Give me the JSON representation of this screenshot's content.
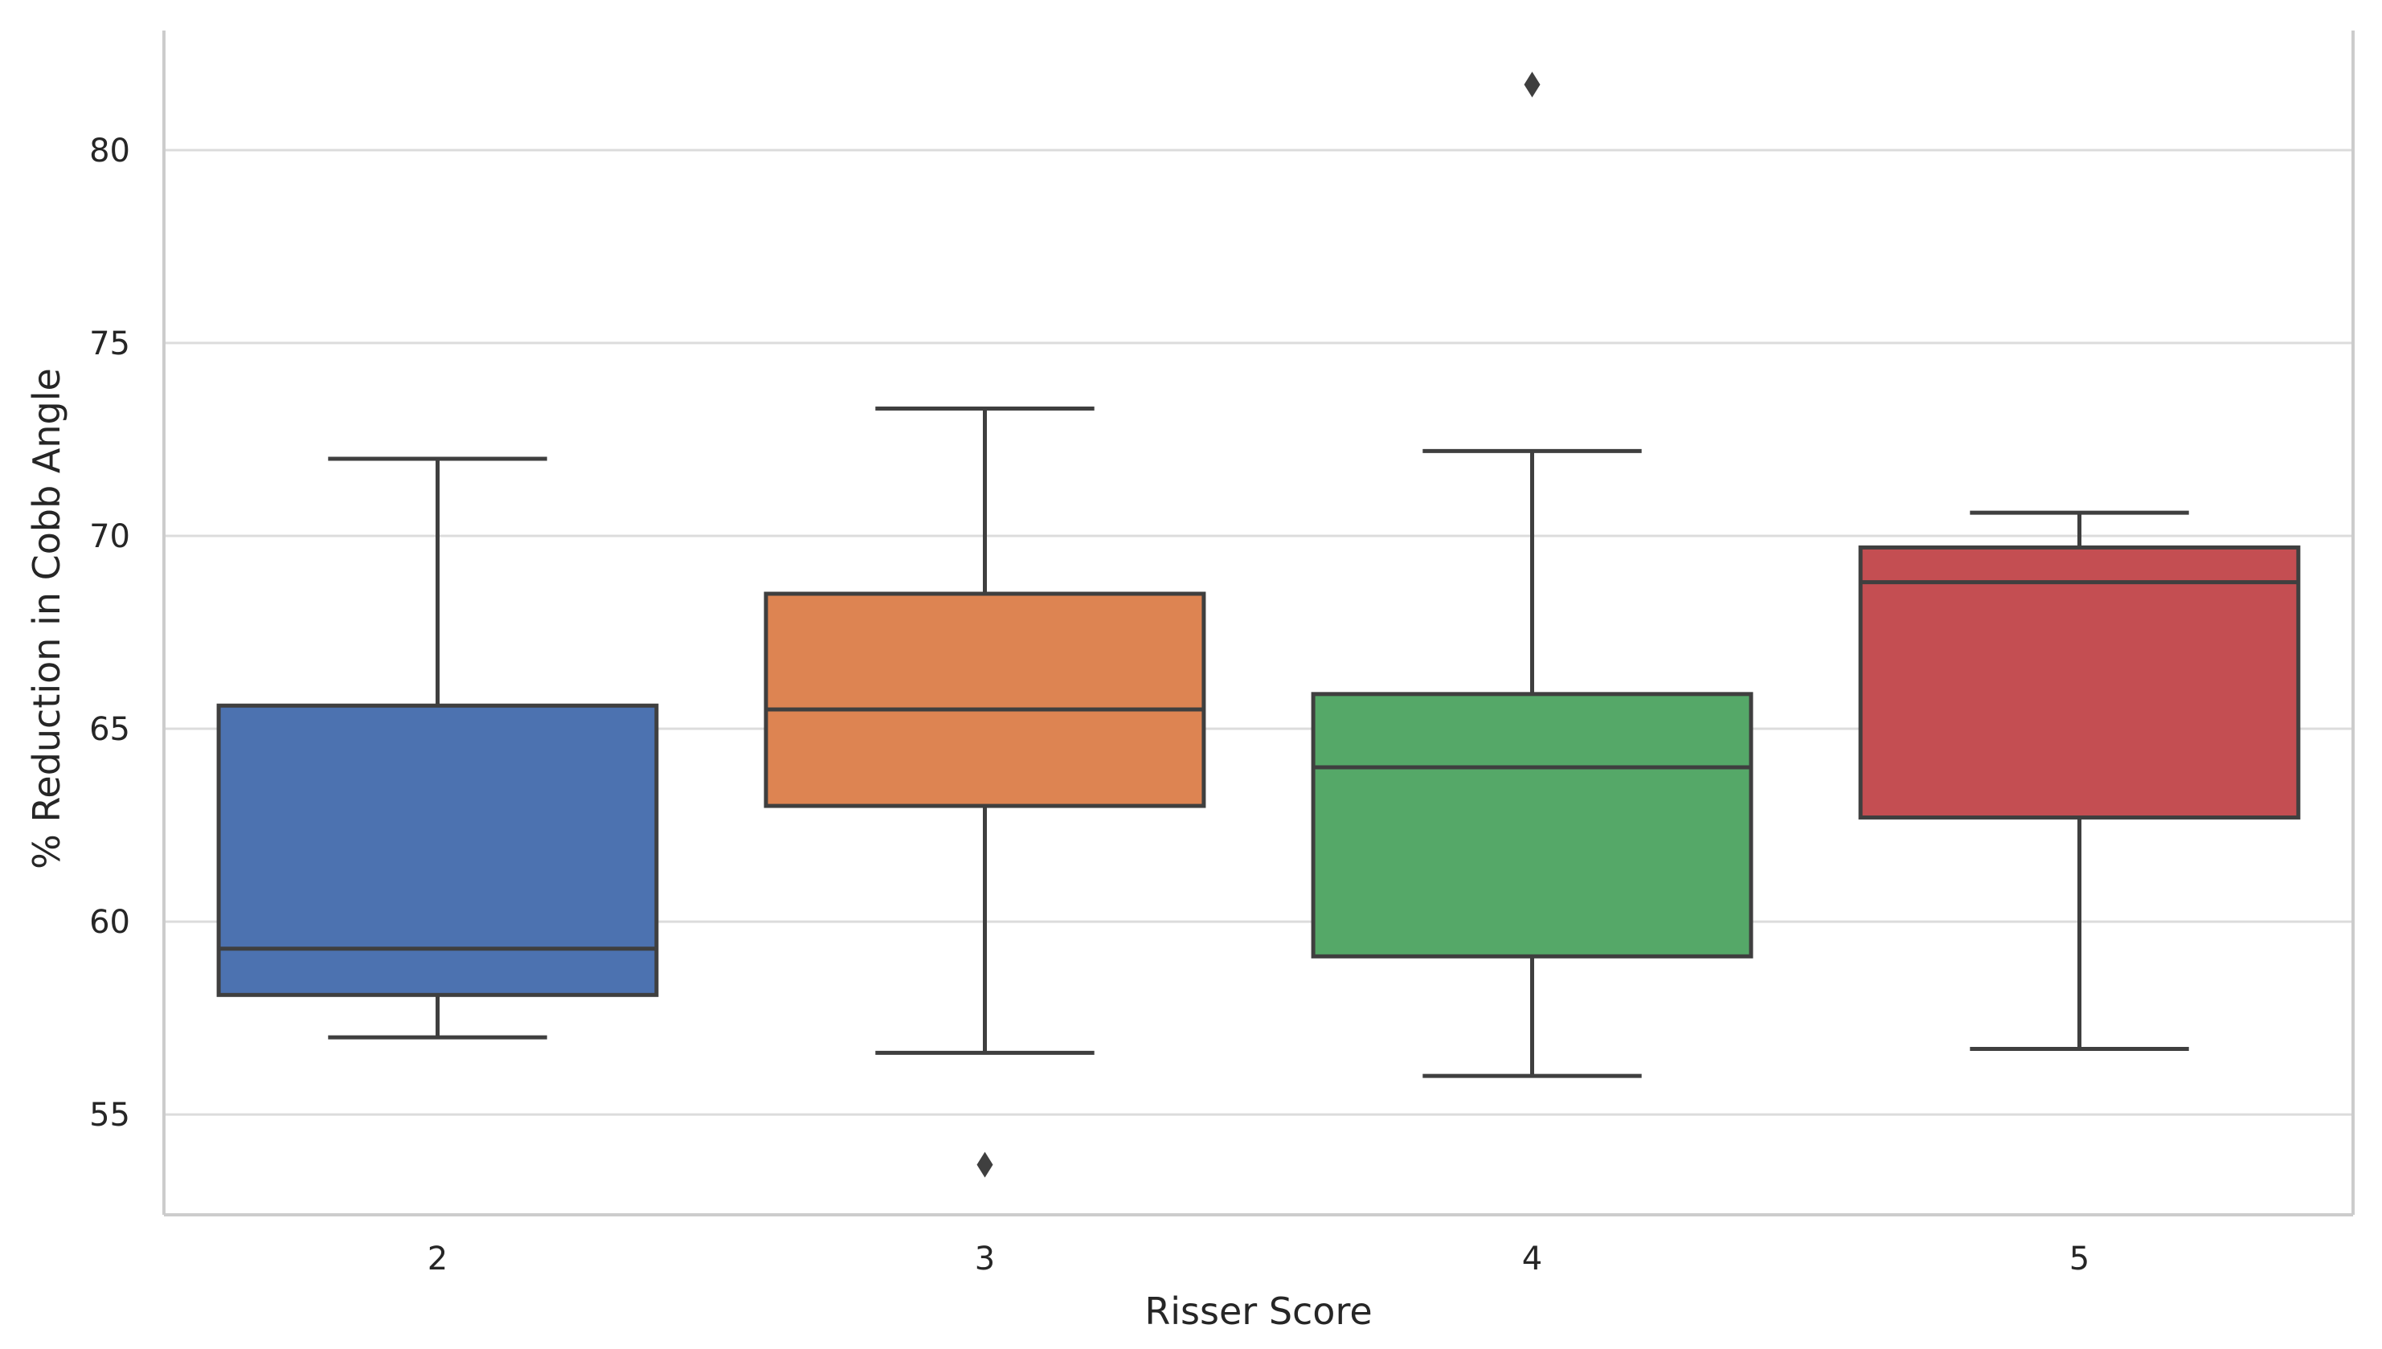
{
  "chart_data": {
    "type": "box",
    "xlabel": "Risser Score",
    "ylabel": "% Reduction in Cobb Angle",
    "categories": [
      "2",
      "3",
      "4",
      "5"
    ],
    "ylim": [
      52.4,
      83.1
    ],
    "yticks": [
      55,
      60,
      65,
      70,
      75,
      80
    ],
    "grid": true,
    "legend": "none",
    "boxes": [
      {
        "category": "2",
        "whisker_low": 57.0,
        "q1": 58.1,
        "median": 59.3,
        "q3": 65.6,
        "whisker_high": 72.0,
        "outliers": [],
        "color": "#4c72b0"
      },
      {
        "category": "3",
        "whisker_low": 56.6,
        "q1": 63.0,
        "median": 65.5,
        "q3": 68.5,
        "whisker_high": 73.3,
        "outliers": [
          53.7
        ],
        "color": "#dd8452"
      },
      {
        "category": "4",
        "whisker_low": 56.0,
        "q1": 59.1,
        "median": 64.0,
        "q3": 65.9,
        "whisker_high": 72.2,
        "outliers": [
          81.7
        ],
        "color": "#55a868"
      },
      {
        "category": "5",
        "whisker_low": 56.7,
        "q1": 62.7,
        "median": 68.8,
        "q3": 69.7,
        "whisker_high": 70.6,
        "outliers": [],
        "color": "#c44e52"
      }
    ]
  }
}
